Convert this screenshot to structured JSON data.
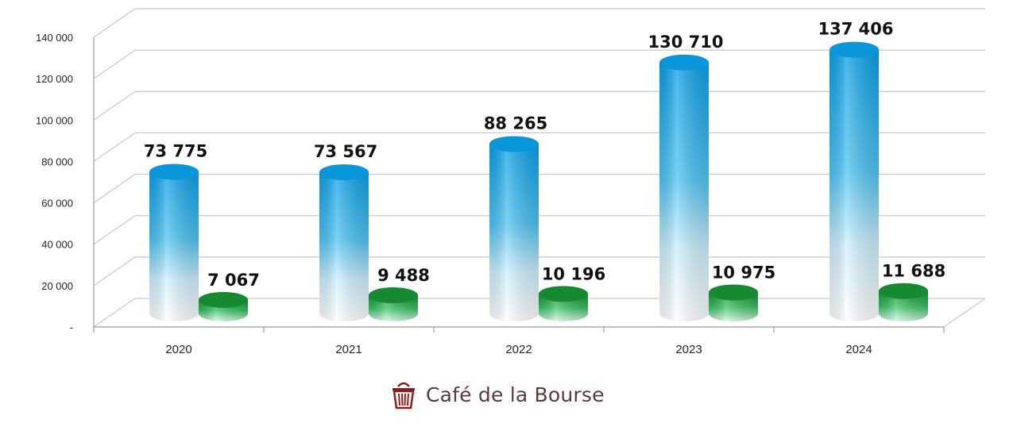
{
  "chart_data": {
    "type": "bar",
    "style": "3d-cylinder",
    "categories": [
      "2020",
      "2021",
      "2022",
      "2023",
      "2024"
    ],
    "series": [
      {
        "values": [
          73775,
          73567,
          88265,
          130710,
          137406
        ],
        "color": "#1aaee8"
      },
      {
        "values": [
          7067,
          9488,
          10196,
          10975,
          11688
        ],
        "color": "#1e9b3c"
      }
    ],
    "data_labels": [
      [
        "73 775",
        "73 567",
        "88 265",
        "130 710",
        "137 406"
      ],
      [
        "7 067",
        "9 488",
        "10 196",
        "10 975",
        "11 688"
      ]
    ],
    "y_ticks": [
      {
        "value": 0,
        "label": "-"
      },
      {
        "value": 20000,
        "label": "20 000"
      },
      {
        "value": 40000,
        "label": "40 000"
      },
      {
        "value": 60000,
        "label": "60 000"
      },
      {
        "value": 80000,
        "label": "80 000"
      },
      {
        "value": 100000,
        "label": "100 000"
      },
      {
        "value": 120000,
        "label": "120 000"
      },
      {
        "value": 140000,
        "label": "140 000"
      }
    ],
    "ylim": [
      0,
      140000
    ],
    "grid": true,
    "legend": "none"
  },
  "logo": {
    "text": "Café de la Bourse",
    "icon": "bin-icon"
  }
}
